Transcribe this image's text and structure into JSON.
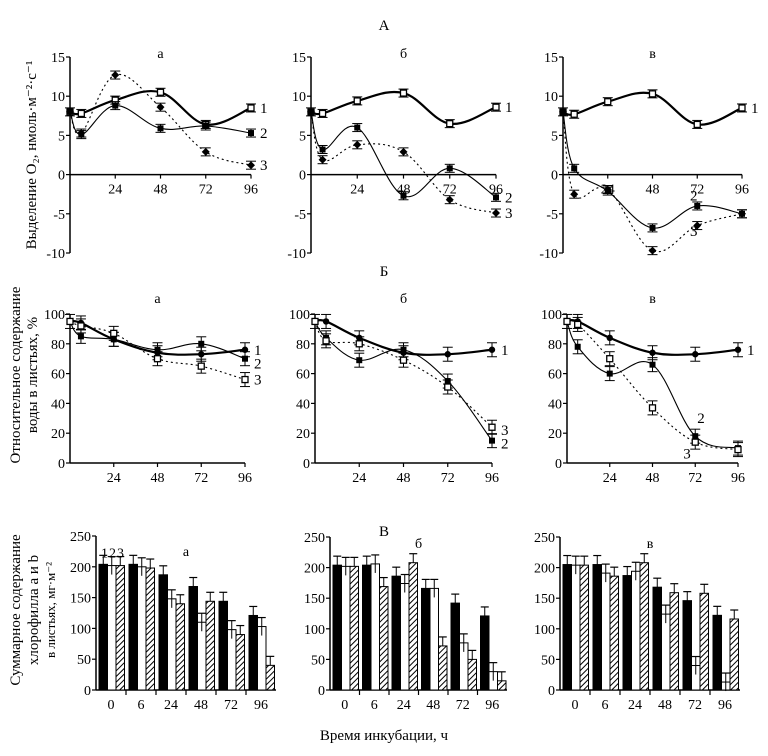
{
  "figure": {
    "x_title": "Время инкубации, ч",
    "sections": [
      {
        "key": "A",
        "label": "А",
        "ylabel_lines": [
          "Выделение O₂, нмоль·м⁻²·с⁻¹"
        ]
      },
      {
        "key": "B",
        "label": "Б",
        "ylabel_lines": [
          "Относительное содержание",
          "воды в листьях, %"
        ]
      },
      {
        "key": "C",
        "label": "В",
        "ylabel_lines": [
          "Суммарное содержание",
          "хлорофилла a и b",
          "в листьях, мг·м⁻²"
        ]
      }
    ]
  },
  "chart_data": [
    {
      "id": "A-a",
      "section": "A",
      "panel_label": "а",
      "type": "line",
      "x": [
        0,
        6,
        24,
        48,
        72,
        96
      ],
      "x_ticks": [
        "24",
        "48",
        "72",
        "96"
      ],
      "ylim": [
        -10,
        15
      ],
      "y_ticks": [
        "-10",
        "-5",
        "0",
        "5",
        "10",
        "15"
      ],
      "series": [
        {
          "name": "1",
          "style": "thick-open-square",
          "values": [
            8.0,
            7.8,
            9.5,
            10.5,
            6.4,
            8.5
          ]
        },
        {
          "name": "2",
          "style": "thin-filled-square",
          "values": [
            8.1,
            5.1,
            8.8,
            5.9,
            6.2,
            5.3
          ]
        },
        {
          "name": "3",
          "style": "dotted-diamond",
          "values": [
            8.0,
            5.3,
            12.7,
            8.6,
            2.9,
            1.2
          ]
        }
      ]
    },
    {
      "id": "A-b",
      "section": "A",
      "panel_label": "б",
      "type": "line",
      "x": [
        0,
        6,
        24,
        48,
        72,
        96
      ],
      "x_ticks": [
        "24",
        "48",
        "72",
        "96"
      ],
      "ylim": [
        -10,
        15
      ],
      "y_ticks": [
        "-10",
        "-5",
        "0",
        "5",
        "10",
        "15"
      ],
      "series": [
        {
          "name": "1",
          "style": "thick-open-square",
          "values": [
            8.0,
            7.8,
            9.4,
            10.4,
            6.5,
            8.6
          ]
        },
        {
          "name": "2",
          "style": "thin-filled-square",
          "values": [
            8.0,
            3.2,
            6.0,
            -2.7,
            0.8,
            -2.9
          ]
        },
        {
          "name": "3",
          "style": "dotted-diamond",
          "values": [
            8.0,
            1.9,
            3.8,
            2.9,
            -3.2,
            -4.9
          ]
        }
      ]
    },
    {
      "id": "A-c",
      "section": "A",
      "panel_label": "в",
      "type": "line",
      "x": [
        0,
        6,
        24,
        48,
        72,
        96
      ],
      "x_ticks": [
        "24",
        "48",
        "72",
        "96"
      ],
      "ylim": [
        -10,
        15
      ],
      "y_ticks": [
        "-10",
        "-5",
        "0",
        "5",
        "10",
        "15"
      ],
      "series": [
        {
          "name": "1",
          "style": "thick-open-square",
          "values": [
            8.0,
            7.7,
            9.3,
            10.3,
            6.4,
            8.5
          ]
        },
        {
          "name": "2",
          "style": "thin-filled-square",
          "values": [
            8.0,
            0.8,
            -2.1,
            -6.8,
            -4.0,
            -5.0
          ]
        },
        {
          "name": "3",
          "style": "dotted-diamond",
          "values": [
            8.0,
            -2.5,
            -1.9,
            -9.7,
            -6.5,
            -5.0
          ]
        }
      ]
    },
    {
      "id": "B-a",
      "section": "B",
      "panel_label": "а",
      "type": "line",
      "x": [
        0,
        6,
        24,
        48,
        72,
        96
      ],
      "x_ticks": [
        "24",
        "48",
        "72",
        "96"
      ],
      "ylim": [
        0,
        100
      ],
      "y_ticks": [
        "0",
        "20",
        "40",
        "60",
        "80",
        "100"
      ],
      "series": [
        {
          "name": "1",
          "style": "thick-filled-circle",
          "values": [
            95,
            94,
            83,
            74,
            73,
            76
          ]
        },
        {
          "name": "2",
          "style": "thin-filled-square",
          "values": [
            95,
            85,
            83,
            76,
            80,
            70
          ]
        },
        {
          "name": "3",
          "style": "dotted-open-square",
          "values": [
            95,
            92,
            87,
            70,
            65,
            56
          ]
        }
      ]
    },
    {
      "id": "B-b",
      "section": "B",
      "panel_label": "б",
      "type": "line",
      "x": [
        0,
        6,
        24,
        48,
        72,
        96
      ],
      "x_ticks": [
        "24",
        "48",
        "72",
        "96"
      ],
      "ylim": [
        0,
        100
      ],
      "y_ticks": [
        "0",
        "20",
        "40",
        "60",
        "80",
        "100"
      ],
      "series": [
        {
          "name": "1",
          "style": "thick-filled-circle",
          "values": [
            95,
            95,
            84,
            74,
            73,
            76
          ]
        },
        {
          "name": "2",
          "style": "thin-filled-square",
          "values": [
            95,
            84,
            69,
            76,
            55,
            15
          ]
        },
        {
          "name": "3",
          "style": "dotted-open-square",
          "values": [
            95,
            82,
            80,
            69,
            51,
            24
          ]
        }
      ]
    },
    {
      "id": "B-c",
      "section": "B",
      "panel_label": "в",
      "type": "line",
      "x": [
        0,
        6,
        24,
        48,
        72,
        96
      ],
      "x_ticks": [
        "24",
        "48",
        "72",
        "96"
      ],
      "ylim": [
        0,
        100
      ],
      "y_ticks": [
        "0",
        "20",
        "40",
        "60",
        "80",
        "100"
      ],
      "series": [
        {
          "name": "1",
          "style": "thick-filled-circle",
          "values": [
            95,
            95,
            84,
            74,
            73,
            76
          ]
        },
        {
          "name": "2",
          "style": "thin-filled-square",
          "values": [
            95,
            78,
            60,
            66,
            18,
            10
          ]
        },
        {
          "name": "3",
          "style": "dotted-open-square",
          "values": [
            95,
            93,
            70,
            37,
            14,
            9
          ]
        }
      ]
    },
    {
      "id": "C-a",
      "section": "C",
      "panel_label": "а",
      "type": "bar",
      "categories": [
        "0",
        "6",
        "24",
        "48",
        "72",
        "96"
      ],
      "ylim": [
        0,
        250
      ],
      "y_ticks": [
        "0",
        "50",
        "100",
        "150",
        "200",
        "250"
      ],
      "legend_numbers": "123",
      "series": [
        {
          "name": "1",
          "fill": "black",
          "values": [
            204,
            204,
            187,
            168,
            144,
            121
          ]
        },
        {
          "name": "2",
          "fill": "white",
          "values": [
            202,
            200,
            148,
            110,
            98,
            103
          ]
        },
        {
          "name": "3",
          "fill": "hatched",
          "values": [
            202,
            198,
            140,
            144,
            90,
            40
          ]
        }
      ]
    },
    {
      "id": "C-b",
      "section": "C",
      "panel_label": "б",
      "type": "bar",
      "categories": [
        "0",
        "6",
        "24",
        "48",
        "72",
        "96"
      ],
      "ylim": [
        0,
        250
      ],
      "y_ticks": [
        "0",
        "50",
        "100",
        "150",
        "200",
        "250"
      ],
      "series": [
        {
          "name": "1",
          "fill": "black",
          "values": [
            204,
            204,
            186,
            166,
            142,
            121
          ]
        },
        {
          "name": "2",
          "fill": "white",
          "values": [
            202,
            206,
            174,
            166,
            77,
            30
          ]
        },
        {
          "name": "3",
          "fill": "hatched",
          "values": [
            202,
            169,
            208,
            72,
            50,
            15
          ]
        }
      ]
    },
    {
      "id": "C-c",
      "section": "C",
      "panel_label": "в",
      "type": "bar",
      "categories": [
        "0",
        "6",
        "24",
        "48",
        "72",
        "96"
      ],
      "ylim": [
        0,
        250
      ],
      "y_ticks": [
        "0",
        "50",
        "100",
        "150",
        "200",
        "250"
      ],
      "series": [
        {
          "name": "1",
          "fill": "black",
          "values": [
            205,
            205,
            187,
            168,
            146,
            122
          ]
        },
        {
          "name": "2",
          "fill": "white",
          "values": [
            204,
            191,
            194,
            124,
            40,
            13
          ]
        },
        {
          "name": "3",
          "fill": "hatched",
          "values": [
            204,
            186,
            208,
            159,
            158,
            116
          ]
        }
      ]
    }
  ]
}
